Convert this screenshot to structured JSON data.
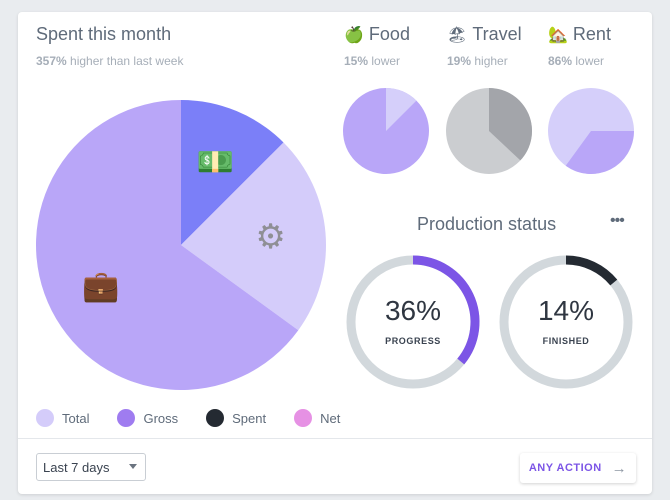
{
  "header": {
    "title": "Spent this month",
    "subtitle_pct": "357%",
    "subtitle_rest": " higher than last week"
  },
  "categories": [
    {
      "emoji": "🍏",
      "name": "Food",
      "pct": "15%",
      "trend": " lower"
    },
    {
      "emoji": "🏖",
      "name": "Travel",
      "pct": "19%",
      "trend": " higher"
    },
    {
      "emoji": "🏡",
      "name": "Rent",
      "pct": "86%",
      "trend": " lower"
    }
  ],
  "main_pie": {
    "slices": [
      {
        "icon": "money-icon",
        "glyph": "💵",
        "fraction": 0.125,
        "color": "#7b7ff8"
      },
      {
        "icon": "gear-icon",
        "glyph": "⚙",
        "fraction": 0.225,
        "color": "#d4ccfa"
      },
      {
        "icon": "briefcase-icon",
        "glyph": "💼",
        "fraction": 0.65,
        "color": "#b9a6f8"
      }
    ]
  },
  "mini_pies": [
    {
      "fraction": 0.125,
      "fg": "#d5cffa",
      "bg": "#b9a6f8"
    },
    {
      "fraction": 0.37,
      "fg": "#a3a5aa",
      "bg": "#cbcdd0"
    },
    {
      "fraction": 0.35,
      "fg": "#b9a6f8",
      "bg": "#d5cffa",
      "start": 0.25
    }
  ],
  "legend": [
    {
      "label": "Total",
      "color": "#d4ccfa"
    },
    {
      "label": "Gross",
      "color": "#9f7cf0"
    },
    {
      "label": "Spent",
      "color": "#242a32"
    },
    {
      "label": "Net",
      "color": "#e691e4"
    }
  ],
  "production": {
    "title": "Production status",
    "more": "•••",
    "items": [
      {
        "value": "36%",
        "label": "PROGRESS",
        "fraction": 0.36,
        "color": "#7c55e6"
      },
      {
        "value": "14%",
        "label": "FINISHED",
        "fraction": 0.14,
        "color": "#242a32"
      }
    ],
    "track_color": "#d2d8dc"
  },
  "footer": {
    "range": "Last 7 days",
    "action": "ANY ACTION",
    "arrow": "→"
  }
}
